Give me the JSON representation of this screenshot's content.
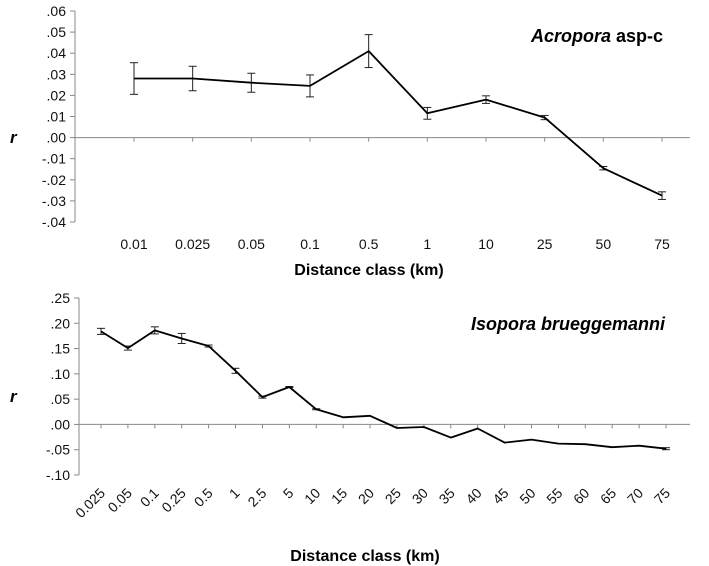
{
  "chart_data": [
    {
      "type": "line",
      "title_italic": "Acropora",
      "title_rest": " asp-c",
      "xlabel": "Distance class (km)",
      "ylabel": "r",
      "ylim": [
        -0.04,
        0.06
      ],
      "yticks": [
        ".06",
        ".05",
        ".04",
        ".03",
        ".02",
        ".01",
        ".00",
        "-.01",
        "-.02",
        "-.03",
        "-.04"
      ],
      "ytick_values": [
        0.06,
        0.05,
        0.04,
        0.03,
        0.02,
        0.01,
        0.0,
        -0.01,
        -0.02,
        -0.03,
        -0.04
      ],
      "categories": [
        "0.01",
        "0.025",
        "0.05",
        "0.1",
        "0.5",
        "1",
        "10",
        "25",
        "50",
        "75"
      ],
      "values": [
        0.028,
        0.028,
        0.026,
        0.0245,
        0.041,
        0.0115,
        0.018,
        0.0095,
        -0.0145,
        -0.0275
      ],
      "error": [
        0.0075,
        0.0058,
        0.0045,
        0.0052,
        0.0078,
        0.0028,
        0.0018,
        0.001,
        0.0008,
        0.0018
      ],
      "grid": false,
      "legend": "none"
    },
    {
      "type": "line",
      "title_italic": "Isopora brueggemanni",
      "title_rest": "",
      "xlabel": "Distance class (km)",
      "ylabel": "r",
      "ylim": [
        -0.1,
        0.25
      ],
      "yticks": [
        ".25",
        ".20",
        ".15",
        ".10",
        ".05",
        ".00",
        "-.05",
        "-.10"
      ],
      "ytick_values": [
        0.25,
        0.2,
        0.15,
        0.1,
        0.05,
        0.0,
        -0.05,
        -0.1
      ],
      "categories": [
        "0.025",
        "0.05",
        "0.1",
        "0.25",
        "0.5",
        "1",
        "2.5",
        "5",
        "10",
        "15",
        "20",
        "25",
        "30",
        "35",
        "40",
        "45",
        "50",
        "55",
        "60",
        "65",
        "70",
        "75"
      ],
      "values": [
        0.184,
        0.151,
        0.186,
        0.17,
        0.155,
        0.106,
        0.054,
        0.074,
        0.03,
        0.014,
        0.017,
        -0.007,
        -0.005,
        -0.026,
        -0.008,
        -0.036,
        -0.03,
        -0.038,
        -0.039,
        -0.045,
        -0.042,
        -0.048
      ],
      "error": [
        0.006,
        0.004,
        0.007,
        0.01,
        0.002,
        0.005,
        0.002,
        0.001,
        0.001,
        0,
        0,
        0,
        0,
        0,
        0,
        0,
        0,
        0,
        0,
        0,
        0,
        0.002
      ],
      "grid": false,
      "legend": "none"
    }
  ]
}
